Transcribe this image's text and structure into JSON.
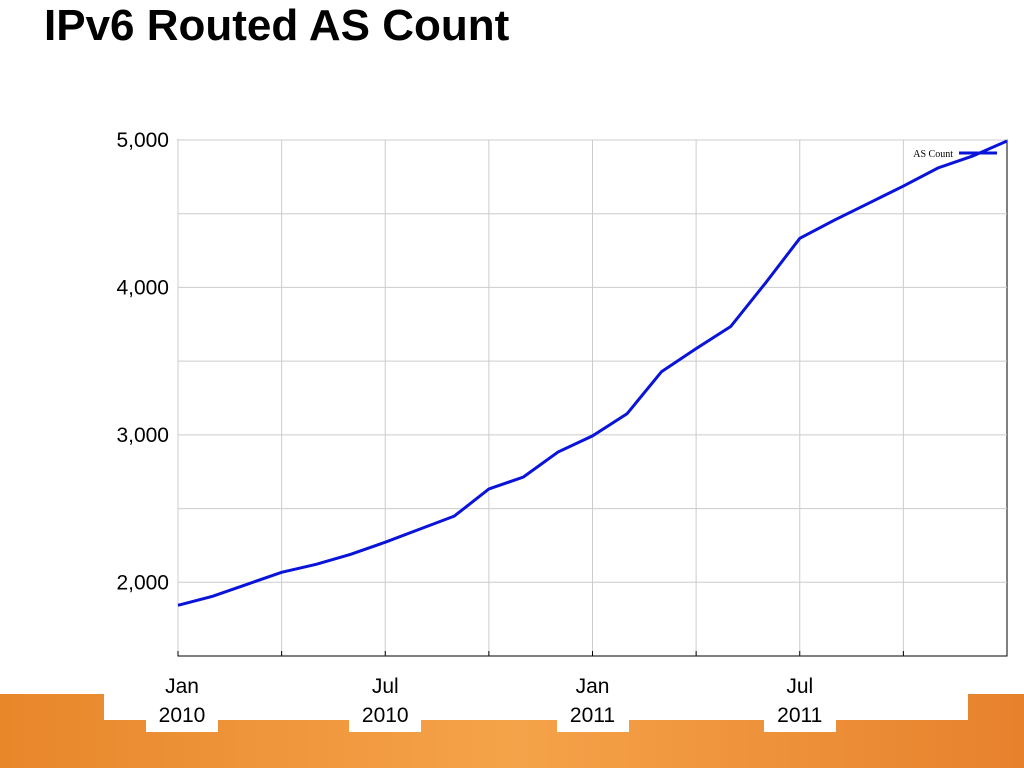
{
  "chart_data": {
    "type": "line",
    "title": "IPv6 Routed AS Count",
    "x": [
      "2010-01",
      "2010-02",
      "2010-03",
      "2010-04",
      "2010-05",
      "2010-06",
      "2010-07",
      "2010-08",
      "2010-09",
      "2010-10",
      "2010-11",
      "2010-12",
      "2011-01",
      "2011-02",
      "2011-03",
      "2011-04",
      "2011-05",
      "2011-06",
      "2011-07",
      "2011-08",
      "2011-09",
      "2011-10",
      "2011-11",
      "2011-12",
      "2012-01"
    ],
    "series": [
      {
        "name": "AS Count",
        "color": "#0a14d8",
        "values": [
          1844,
          1905,
          1986,
          2068,
          2122,
          2190,
          2272,
          2361,
          2449,
          2633,
          2714,
          2884,
          2993,
          3143,
          3429,
          3585,
          3735,
          4027,
          4333,
          4456,
          4571,
          4687,
          4810,
          4891,
          4993
        ]
      }
    ],
    "xlim": [
      "2010-01",
      "2012-01"
    ],
    "xticks": [
      {
        "value": "2010-01",
        "label": "Jan 2010"
      },
      {
        "value": "2010-07",
        "label": "Jul 2010"
      },
      {
        "value": "2011-01",
        "label": "Jan 2011"
      },
      {
        "value": "2011-07",
        "label": "Jul 2011"
      }
    ],
    "xgrid": [
      "2010-04",
      "2010-10",
      "2011-04",
      "2011-10"
    ],
    "ylim": [
      1500,
      5000
    ],
    "yticks": [
      {
        "value": 2000,
        "label": "2,000"
      },
      {
        "value": 3000,
        "label": "3,000"
      },
      {
        "value": 4000,
        "label": "4,000"
      },
      {
        "value": 5000,
        "label": "5,000"
      }
    ],
    "ygrid": [
      2500,
      3500,
      4500
    ],
    "grid": true,
    "legend": "upper right"
  }
}
